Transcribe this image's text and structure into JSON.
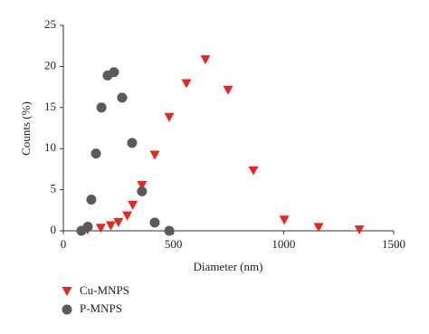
{
  "chart_data": {
    "type": "scatter",
    "x_label": "Diameter (nm)",
    "y_label": "Counts (%)",
    "xlim": [
      0,
      1500
    ],
    "xticks": [
      0,
      500,
      1000,
      1500
    ],
    "ylim": [
      0,
      25
    ],
    "yticks": [
      0,
      5,
      10,
      15,
      20,
      25
    ],
    "series": [
      {
        "name": "Cu-MNPS",
        "color": "#e8251e",
        "marker": "triangle",
        "x": [
          110,
          170,
          215,
          250,
          290,
          315,
          357,
          415,
          481,
          559,
          645,
          748,
          863,
          1003,
          1159,
          1344
        ],
        "values": [
          0.1,
          0.3,
          0.6,
          1.0,
          1.8,
          3.1,
          5.5,
          9.2,
          13.8,
          17.9,
          20.8,
          17.1,
          7.3,
          1.3,
          0.4,
          0.1
        ]
      },
      {
        "name": "P-MNPS",
        "color": "#5a5a5a",
        "marker": "circle",
        "x": [
          82,
          111,
          127,
          148,
          173,
          201,
          230,
          267,
          312,
          357,
          415,
          481
        ],
        "values": [
          0,
          0.5,
          3.8,
          9.4,
          15.0,
          18.9,
          19.3,
          16.2,
          10.7,
          4.8,
          1.0,
          0
        ]
      }
    ]
  }
}
